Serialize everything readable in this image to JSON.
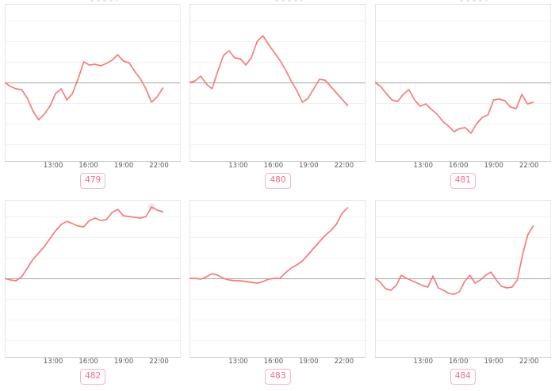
{
  "page": {
    "background": "#ffffff",
    "layout": "3x2 grid of sparkline time-series charts, each with a numbered badge link below"
  },
  "style": {
    "line_color": "#f67d7d",
    "zero_line_color": "#a3a3a3",
    "gridline_color": "#f1f1f1",
    "panel_border_color": "#e4e4e4",
    "panel_bottom_border_color": "#cccccc",
    "tick_color": "#cfcfcf",
    "axis_label_color": "#595959",
    "badge_text_color": "#ee6d8e",
    "badge_border_color": "#f7b2c4",
    "marker_halo_color": "#eaeaea"
  },
  "chart_data": [
    {
      "type": "line",
      "id": "479",
      "badge_label": "479",
      "x_tick_labels": [
        "13:00",
        "16:00",
        "19:00",
        "22:00"
      ],
      "y_axis_labels_visible": false,
      "zero_line": true,
      "grid": true,
      "legend": "none",
      "ylim": [
        -99,
        99
      ],
      "values_unit": "px offset above zero line (no y-axis labels shown in source)",
      "values": [
        0,
        -5,
        -8,
        -9,
        -20,
        -36,
        -47,
        -40,
        -30,
        -14,
        -8,
        -22,
        -14,
        5,
        26,
        22,
        23,
        21,
        24,
        28,
        35,
        27,
        25,
        14,
        5,
        -8,
        -25,
        -18,
        -7
      ]
    },
    {
      "type": "line",
      "id": "480",
      "badge_label": "480",
      "x_tick_labels": [
        "13:00",
        "16:00",
        "19:00",
        "22:00"
      ],
      "y_axis_labels_visible": false,
      "zero_line": true,
      "grid": true,
      "legend": "none",
      "ylim": [
        -99,
        99
      ],
      "values_unit": "px offset above zero line (no y-axis labels shown in source)",
      "values": [
        0,
        2,
        8,
        -2,
        -8,
        14,
        34,
        40,
        31,
        30,
        22,
        32,
        52,
        59,
        48,
        38,
        28,
        16,
        2,
        -10,
        -25,
        -20,
        -8,
        4,
        3,
        -5,
        -13,
        -21,
        -29
      ]
    },
    {
      "type": "line",
      "id": "481",
      "badge_label": "481",
      "x_tick_labels": [
        "13:00",
        "16:00",
        "19:00",
        "22:00"
      ],
      "y_axis_labels_visible": false,
      "zero_line": true,
      "grid": true,
      "legend": "none",
      "ylim": [
        -99,
        99
      ],
      "values_unit": "px offset above zero line (no y-axis labels shown in source)",
      "values": [
        0,
        -5,
        -14,
        -22,
        -24,
        -15,
        -9,
        -22,
        -30,
        -27,
        -34,
        -40,
        -49,
        -55,
        -62,
        -58,
        -57,
        -64,
        -52,
        -44,
        -41,
        -22,
        -21,
        -23,
        -31,
        -33,
        -15,
        -27,
        -25
      ]
    },
    {
      "type": "line",
      "id": "482",
      "badge_label": "482",
      "x_tick_labels": [
        "13:00",
        "16:00",
        "19:00",
        "22:00"
      ],
      "y_axis_labels_visible": false,
      "zero_line": true,
      "grid": true,
      "legend": "none",
      "ylim": [
        -99,
        99
      ],
      "values_unit": "px offset above zero line (no y-axis labels shown in source)",
      "marker_index": 26,
      "values": [
        0,
        -2,
        -3,
        2,
        13,
        24,
        32,
        40,
        50,
        60,
        68,
        72,
        69,
        66,
        65,
        73,
        76,
        73,
        74,
        83,
        87,
        79,
        78,
        77,
        76,
        78,
        90,
        86,
        84
      ]
    },
    {
      "type": "line",
      "id": "483",
      "badge_label": "483",
      "x_tick_labels": [
        "13:00",
        "16:00",
        "19:00",
        "22:00"
      ],
      "y_axis_labels_visible": false,
      "zero_line": true,
      "grid": true,
      "legend": "none",
      "ylim": [
        -99,
        99
      ],
      "values_unit": "px offset above zero line (no y-axis labels shown in source)",
      "values": [
        0,
        0,
        -1,
        2,
        6,
        4,
        0,
        -2,
        -3,
        -3,
        -4,
        -5,
        -6,
        -4,
        -1,
        0,
        0,
        7,
        13,
        17,
        22,
        30,
        38,
        46,
        54,
        60,
        68,
        82,
        89
      ]
    },
    {
      "type": "line",
      "id": "484",
      "badge_label": "484",
      "x_tick_labels": [
        "13:00",
        "16:00",
        "19:00",
        "22:00"
      ],
      "y_axis_labels_visible": false,
      "zero_line": true,
      "grid": true,
      "legend": "none",
      "ylim": [
        -99,
        99
      ],
      "values_unit": "px offset above zero line (no y-axis labels shown in source)",
      "values": [
        0,
        -5,
        -13,
        -15,
        -9,
        4,
        0,
        -3,
        -6,
        -9,
        -11,
        3,
        -12,
        -15,
        -19,
        -20,
        -17,
        -4,
        4,
        -6,
        -2,
        4,
        8,
        -2,
        -10,
        -12,
        -11,
        -2,
        30,
        55,
        66
      ]
    }
  ]
}
